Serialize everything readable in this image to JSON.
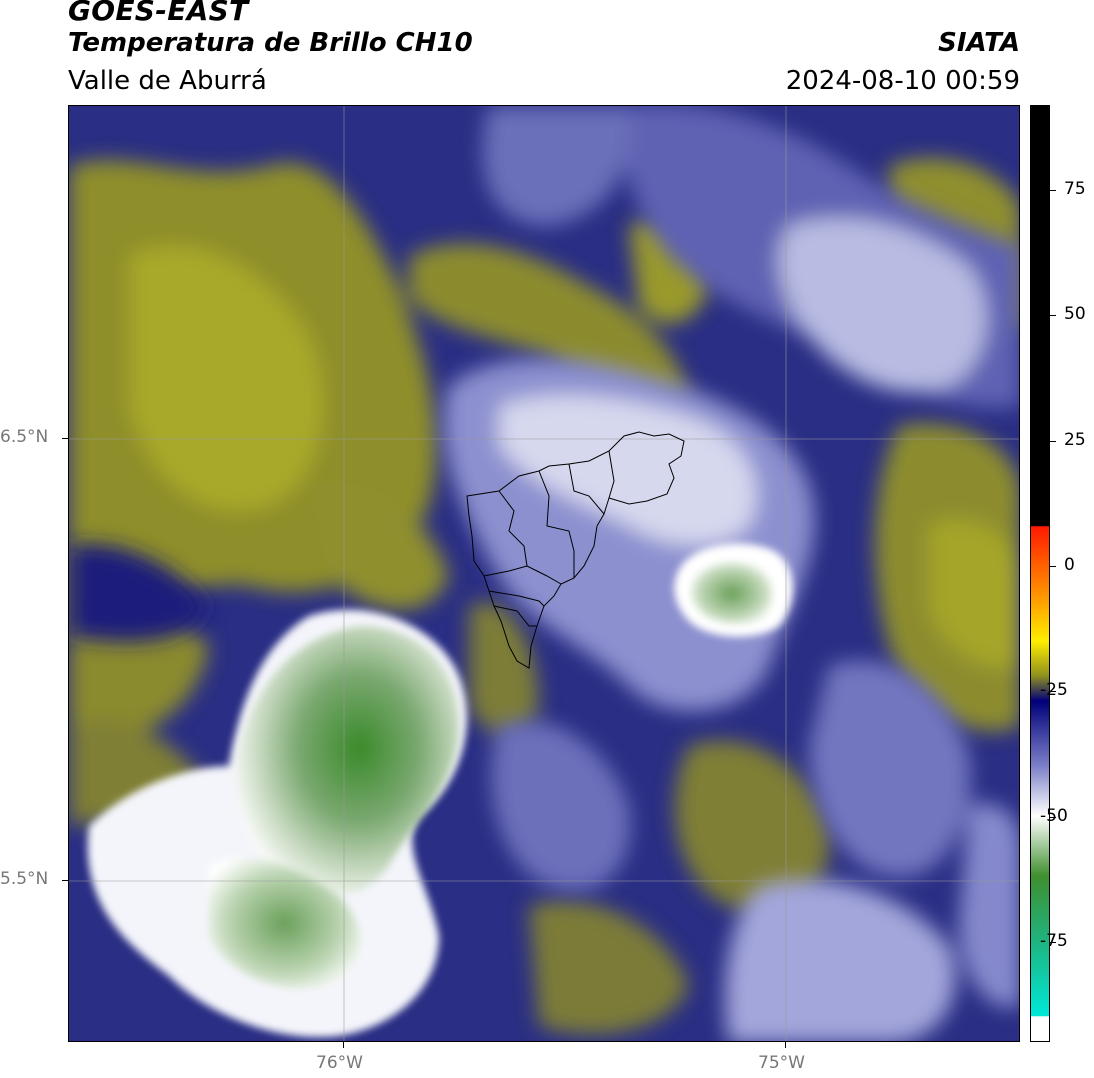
{
  "header": {
    "satellite": "GOES-EAST",
    "product": "Temperatura de Brillo CH10",
    "region": "Valle de Aburrá",
    "org": "SIATA",
    "datetime": "2024-08-10 00:59"
  },
  "axes": {
    "lat_labels": [
      "6.5°N",
      "5.5°N"
    ],
    "lon_labels": [
      "76°W",
      "75°W"
    ]
  },
  "colorbar": {
    "tick_labels": [
      "75",
      "50",
      "25",
      "0",
      "-25",
      "-50",
      "-75"
    ],
    "range": [
      -95,
      92
    ],
    "stops": [
      {
        "value": 92,
        "color": "#000000"
      },
      {
        "value": 8,
        "color": "#000000"
      },
      {
        "value": 7.9,
        "color": "#ff1a00"
      },
      {
        "value": -5,
        "color": "#ff8c00"
      },
      {
        "value": -15,
        "color": "#ffee00"
      },
      {
        "value": -22,
        "color": "#8f8f1f"
      },
      {
        "value": -27,
        "color": "#00007a"
      },
      {
        "value": -40,
        "color": "#7c80c8"
      },
      {
        "value": -50,
        "color": "#ffffff"
      },
      {
        "value": -62,
        "color": "#3f8f2f"
      },
      {
        "value": -75,
        "color": "#1fb47f"
      },
      {
        "value": -90,
        "color": "#00e8d8"
      },
      {
        "value": -90.1,
        "color": "#ffffff"
      },
      {
        "value": -95,
        "color": "#ffffff"
      }
    ]
  }
}
